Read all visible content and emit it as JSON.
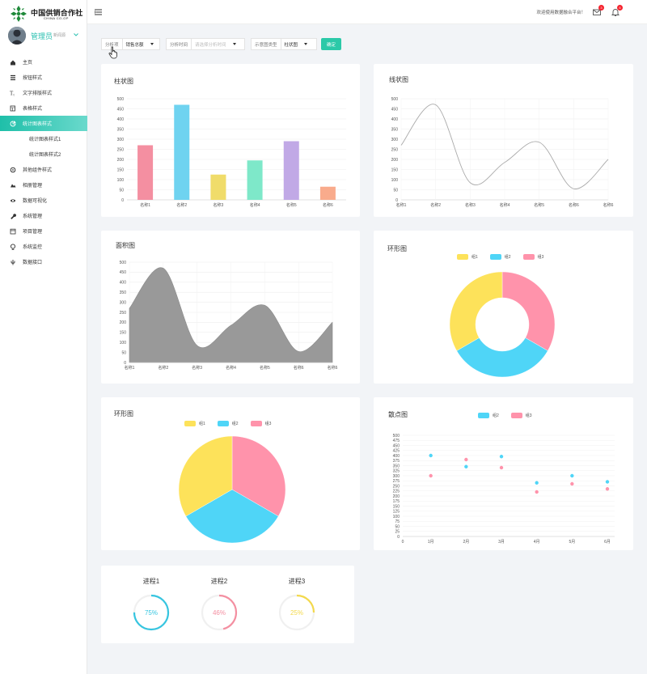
{
  "brand": {
    "name_cn": "中国供销合作社",
    "name_en": "CHINA CO-OP"
  },
  "user": {
    "name": "管理员",
    "role": "新闻源"
  },
  "menu": [
    {
      "label": "主页",
      "icon": "home-icon"
    },
    {
      "label": "按钮样式",
      "icon": "list-icon"
    },
    {
      "label": "文字排版样式",
      "icon": "text-icon"
    },
    {
      "label": "表格样式",
      "icon": "table-icon"
    },
    {
      "label": "统计图表样式",
      "icon": "pie-chart-icon",
      "active": true
    },
    {
      "label": "统计图表样式1",
      "sub": true
    },
    {
      "label": "统计图表样式2",
      "sub": true
    },
    {
      "label": "其他组件样式",
      "icon": "gear-icon"
    },
    {
      "label": "相册管理",
      "icon": "image-icon"
    },
    {
      "label": "数据可视化",
      "icon": "eye-icon"
    },
    {
      "label": "系统管理",
      "icon": "wrench-icon"
    },
    {
      "label": "项目管理",
      "icon": "project-icon"
    },
    {
      "label": "系统监控",
      "icon": "monitor-icon"
    },
    {
      "label": "数据接口",
      "icon": "plug-icon"
    }
  ],
  "header": {
    "welcome": "欢迎使用数据融合平台！",
    "mail_badge": "3",
    "bell_badge": "5"
  },
  "filter": {
    "item_label": "分析项",
    "item_value": "销售总额",
    "time_label": "分析时间",
    "time_placeholder": "请选择分析时间",
    "type_label": "示意图类型",
    "type_value": "柱状图",
    "confirm": "确定"
  },
  "colors": {
    "accent": "#2bc9a8",
    "pink": "#f48fa1",
    "cyan": "#6fd3f0",
    "yellow": "#f0dc6a",
    "green": "#7ee8c9",
    "purple": "#c1a9e6",
    "orange": "#f9ab8c"
  },
  "cards": {
    "bar_title": "柱状图",
    "line_title": "线状图",
    "area_title": "面积图",
    "donut_title": "环形图",
    "pie_title": "环形图",
    "scatter_title": "散点图"
  },
  "chart_data": [
    {
      "type": "bar",
      "categories": [
        "名称1",
        "名称2",
        "名称3",
        "名称4",
        "名称5",
        "名称6"
      ],
      "values": [
        270,
        470,
        125,
        195,
        290,
        65
      ],
      "colors": [
        "#f48fa1",
        "#6fd3f0",
        "#f0dc6a",
        "#7ee8c9",
        "#c1a9e6",
        "#f9ab8c"
      ],
      "ylim": [
        0,
        500
      ],
      "yticks": [
        0,
        50,
        100,
        150,
        200,
        250,
        300,
        350,
        400,
        450,
        500
      ],
      "title": "柱状图"
    },
    {
      "type": "line",
      "categories": [
        "名称1",
        "名称2",
        "名称3",
        "名称4",
        "名称5",
        "名称6",
        "名称6"
      ],
      "values": [
        270,
        470,
        85,
        185,
        285,
        55,
        200
      ],
      "ylim": [
        0,
        500
      ],
      "yticks": [
        0,
        50,
        100,
        150,
        200,
        250,
        300,
        350,
        400,
        450,
        500
      ],
      "title": "线状图"
    },
    {
      "type": "area",
      "categories": [
        "名称1",
        "名称2",
        "名称3",
        "名称4",
        "名称5",
        "名称6",
        "名称6"
      ],
      "values": [
        270,
        470,
        85,
        185,
        285,
        55,
        200
      ],
      "ylim": [
        0,
        500
      ],
      "yticks": [
        0,
        50,
        100,
        150,
        200,
        250,
        300,
        350,
        400,
        450,
        500
      ],
      "title": "面积图"
    },
    {
      "type": "pie",
      "donut": true,
      "labels": [
        "组1",
        "组2",
        "组3"
      ],
      "values": [
        1,
        1,
        1
      ],
      "colors": [
        "#fde25a",
        "#4fd5f7",
        "#ff93ab"
      ],
      "title": "环形图"
    },
    {
      "type": "pie",
      "donut": false,
      "labels": [
        "组1",
        "组2",
        "组3"
      ],
      "values": [
        1,
        1,
        1
      ],
      "colors": [
        "#fde25a",
        "#4fd5f7",
        "#ff93ab"
      ],
      "title": "环形图"
    },
    {
      "type": "scatter",
      "categories": [
        "1月",
        "2月",
        "3月",
        "4月",
        "5月",
        "6月"
      ],
      "series": [
        {
          "name": "组2",
          "color": "#4fd5f7",
          "values": [
            400,
            345,
            395,
            265,
            300,
            270
          ]
        },
        {
          "name": "组3",
          "color": "#ff93ab",
          "values": [
            300,
            380,
            340,
            220,
            260,
            235
          ]
        }
      ],
      "ylim": [
        0,
        500
      ],
      "yticks": [
        0,
        25,
        50,
        75,
        100,
        125,
        150,
        175,
        200,
        225,
        250,
        275,
        300,
        325,
        350,
        375,
        400,
        425,
        450,
        475,
        500
      ],
      "xtick0": "0",
      "title": "散点图"
    }
  ],
  "progress": [
    {
      "label": "进程1",
      "value": 75,
      "text": "75%",
      "color": "#36c5e0"
    },
    {
      "label": "进程2",
      "value": 46,
      "text": "46%",
      "color": "#f48fa1"
    },
    {
      "label": "进程3",
      "value": 25,
      "text": "25%",
      "color": "#f3d94c"
    }
  ]
}
